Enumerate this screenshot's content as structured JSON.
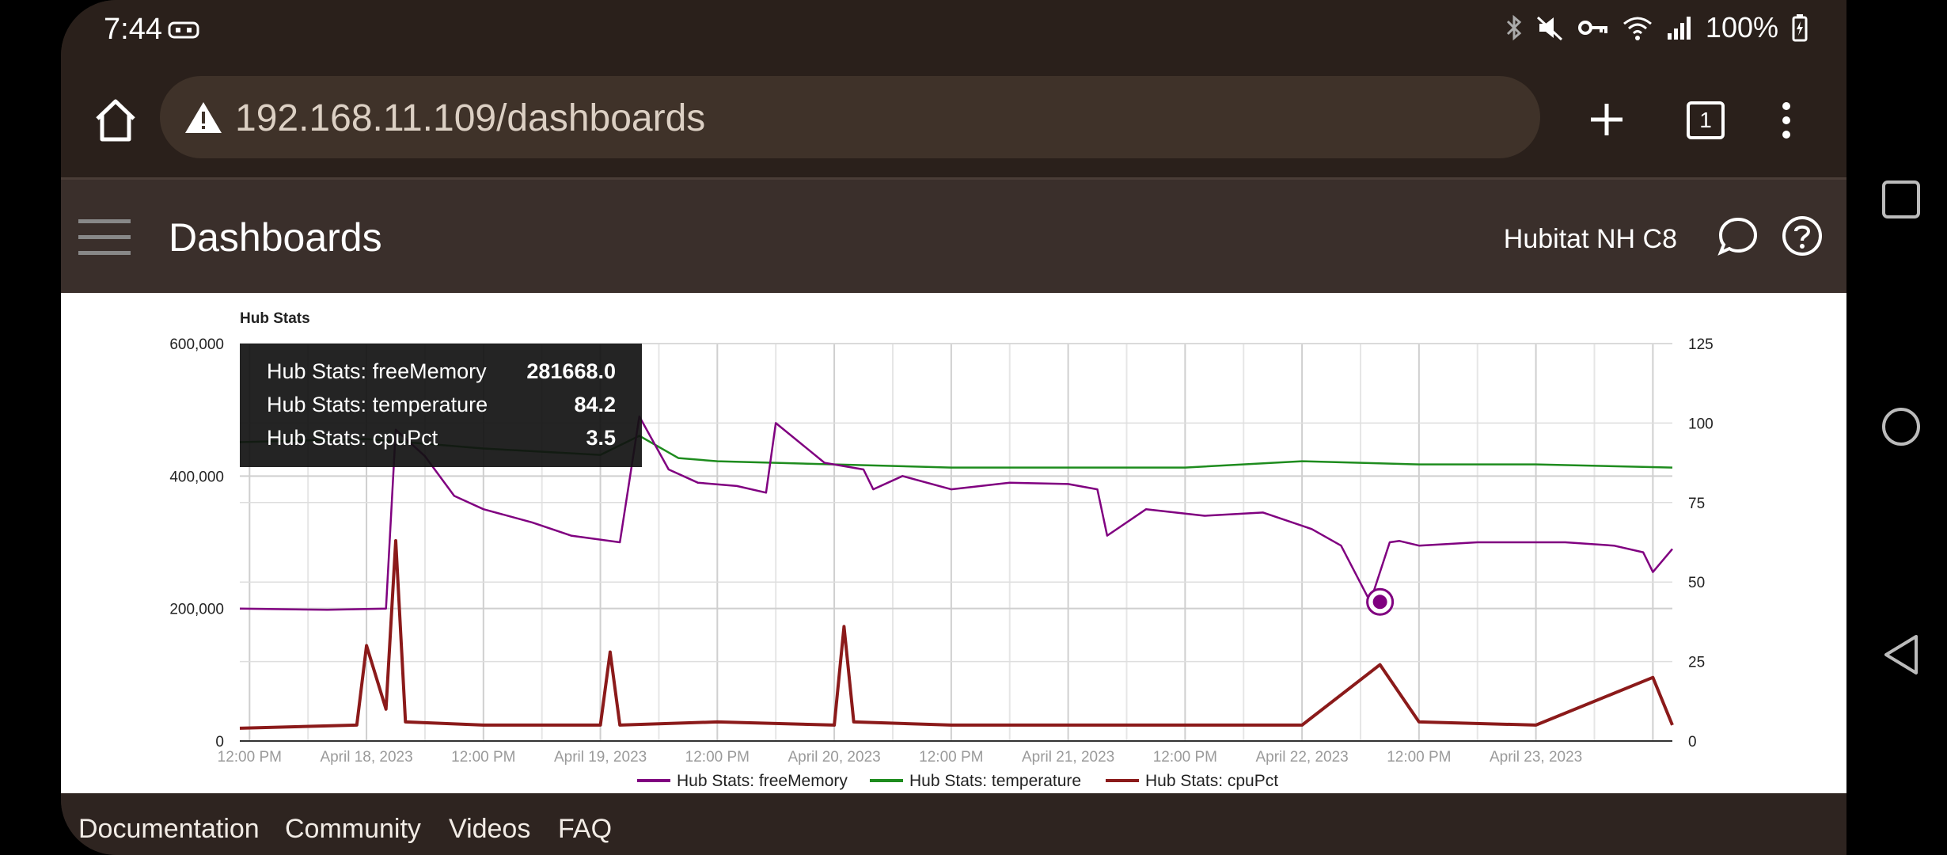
{
  "status_bar": {
    "time": "7:44",
    "battery": "100%"
  },
  "browser": {
    "url": "192.168.11.109/dashboards",
    "tab_count": "1"
  },
  "app_header": {
    "title": "Dashboards",
    "hub_name": "Hubitat NH C8"
  },
  "chart_data": {
    "type": "line",
    "title": "Hub Stats",
    "x_range": [
      "2023-04-17T11:00",
      "2023-04-23T14:00"
    ],
    "x_ticks": [
      "12:00 PM",
      "April 18, 2023",
      "12:00 PM",
      "April 19, 2023",
      "12:00 PM",
      "April 20, 2023",
      "12:00 PM",
      "April 21, 2023",
      "12:00 PM",
      "April 22, 2023",
      "12:00 PM",
      "April 23, 2023"
    ],
    "left_axis": {
      "ylim": [
        0,
        600000
      ],
      "ticks": [
        "0",
        "200,000",
        "400,000",
        "600,000"
      ]
    },
    "right_axis": {
      "ylim": [
        0,
        125
      ],
      "ticks": [
        "0",
        "25",
        "50",
        "75",
        "100",
        "125"
      ]
    },
    "legend_position": "bottom",
    "series": [
      {
        "name": "Hub Stats: freeMemory",
        "axis": "left",
        "color": "#800080",
        "x": [
          "2023-04-17T11:00",
          "2023-04-17T20:00",
          "2023-04-18T02:00",
          "2023-04-18T03:00",
          "2023-04-18T06:00",
          "2023-04-18T09:00",
          "2023-04-18T12:00",
          "2023-04-18T17:00",
          "2023-04-18T21:00",
          "2023-04-19T02:00",
          "2023-04-19T04:00",
          "2023-04-19T07:00",
          "2023-04-19T10:00",
          "2023-04-19T14:00",
          "2023-04-19T17:00",
          "2023-04-19T18:00",
          "2023-04-19T23:00",
          "2023-04-20T03:00",
          "2023-04-20T04:00",
          "2023-04-20T07:00",
          "2023-04-20T12:00",
          "2023-04-20T18:00",
          "2023-04-21T00:00",
          "2023-04-21T03:00",
          "2023-04-21T04:00",
          "2023-04-21T08:00",
          "2023-04-21T14:00",
          "2023-04-21T20:00",
          "2023-04-22T01:00",
          "2023-04-22T04:00",
          "2023-04-22T07:00",
          "2023-04-22T09:00",
          "2023-04-22T10:00",
          "2023-04-22T12:00",
          "2023-04-22T18:00",
          "2023-04-23T03:00",
          "2023-04-23T08:00",
          "2023-04-23T11:00",
          "2023-04-23T12:00",
          "2023-04-23T14:00"
        ],
        "values": [
          200000,
          198000,
          200000,
          470000,
          430000,
          370000,
          350000,
          330000,
          310000,
          300000,
          490000,
          410000,
          390000,
          385000,
          375000,
          480000,
          420000,
          410000,
          380000,
          400000,
          380000,
          390000,
          388000,
          380000,
          310000,
          350000,
          340000,
          345000,
          320000,
          295000,
          210000,
          300000,
          302000,
          295000,
          300000,
          300000,
          295000,
          285000,
          255000,
          290000
        ]
      },
      {
        "name": "Hub Stats: temperature",
        "axis": "right",
        "color": "#1e8c1e",
        "x": [
          "2023-04-17T11:00",
          "2023-04-18T00:00",
          "2023-04-18T12:00",
          "2023-04-19T00:00",
          "2023-04-19T04:00",
          "2023-04-19T08:00",
          "2023-04-19T12:00",
          "2023-04-20T00:00",
          "2023-04-20T12:00",
          "2023-04-21T00:00",
          "2023-04-21T12:00",
          "2023-04-22T00:00",
          "2023-04-22T12:00",
          "2023-04-23T00:00",
          "2023-04-23T14:00"
        ],
        "values": [
          94,
          95,
          92,
          90,
          96,
          89,
          88,
          87,
          86,
          86,
          86,
          88,
          87,
          87,
          86
        ]
      },
      {
        "name": "Hub Stats: cpuPct",
        "axis": "right",
        "color": "#8b1a1a",
        "x": [
          "2023-04-17T11:00",
          "2023-04-17T23:00",
          "2023-04-18T00:00",
          "2023-04-18T02:00",
          "2023-04-18T03:00",
          "2023-04-18T04:00",
          "2023-04-18T12:00",
          "2023-04-19T00:00",
          "2023-04-19T01:00",
          "2023-04-19T02:00",
          "2023-04-19T12:00",
          "2023-04-20T00:00",
          "2023-04-20T01:00",
          "2023-04-20T02:00",
          "2023-04-20T12:00",
          "2023-04-21T00:00",
          "2023-04-21T12:00",
          "2023-04-22T00:00",
          "2023-04-22T08:00",
          "2023-04-22T12:00",
          "2023-04-23T00:00",
          "2023-04-23T12:00",
          "2023-04-23T14:00"
        ],
        "values": [
          4,
          5,
          30,
          10,
          63,
          6,
          5,
          5,
          28,
          5,
          6,
          5,
          36,
          6,
          5,
          5,
          5,
          5,
          24,
          6,
          5,
          20,
          5
        ]
      }
    ],
    "tooltip": {
      "rows": [
        {
          "label": "Hub Stats: freeMemory",
          "value": "281668.0"
        },
        {
          "label": "Hub Stats: temperature",
          "value": "84.2"
        },
        {
          "label": "Hub Stats: cpuPct",
          "value": "3.5"
        }
      ],
      "hover_x": "2023-04-22T08:00",
      "hover_value": 210000
    }
  },
  "footer": {
    "links": [
      "Documentation",
      "Community",
      "Videos",
      "FAQ"
    ]
  },
  "icons": {
    "home": "home-icon",
    "warning": "warning-icon",
    "add": "plus-icon",
    "tabs": "tabs-icon",
    "menu": "more-vert-icon",
    "hamburger": "hamburger-icon",
    "chat": "chat-icon",
    "help": "help-icon"
  }
}
